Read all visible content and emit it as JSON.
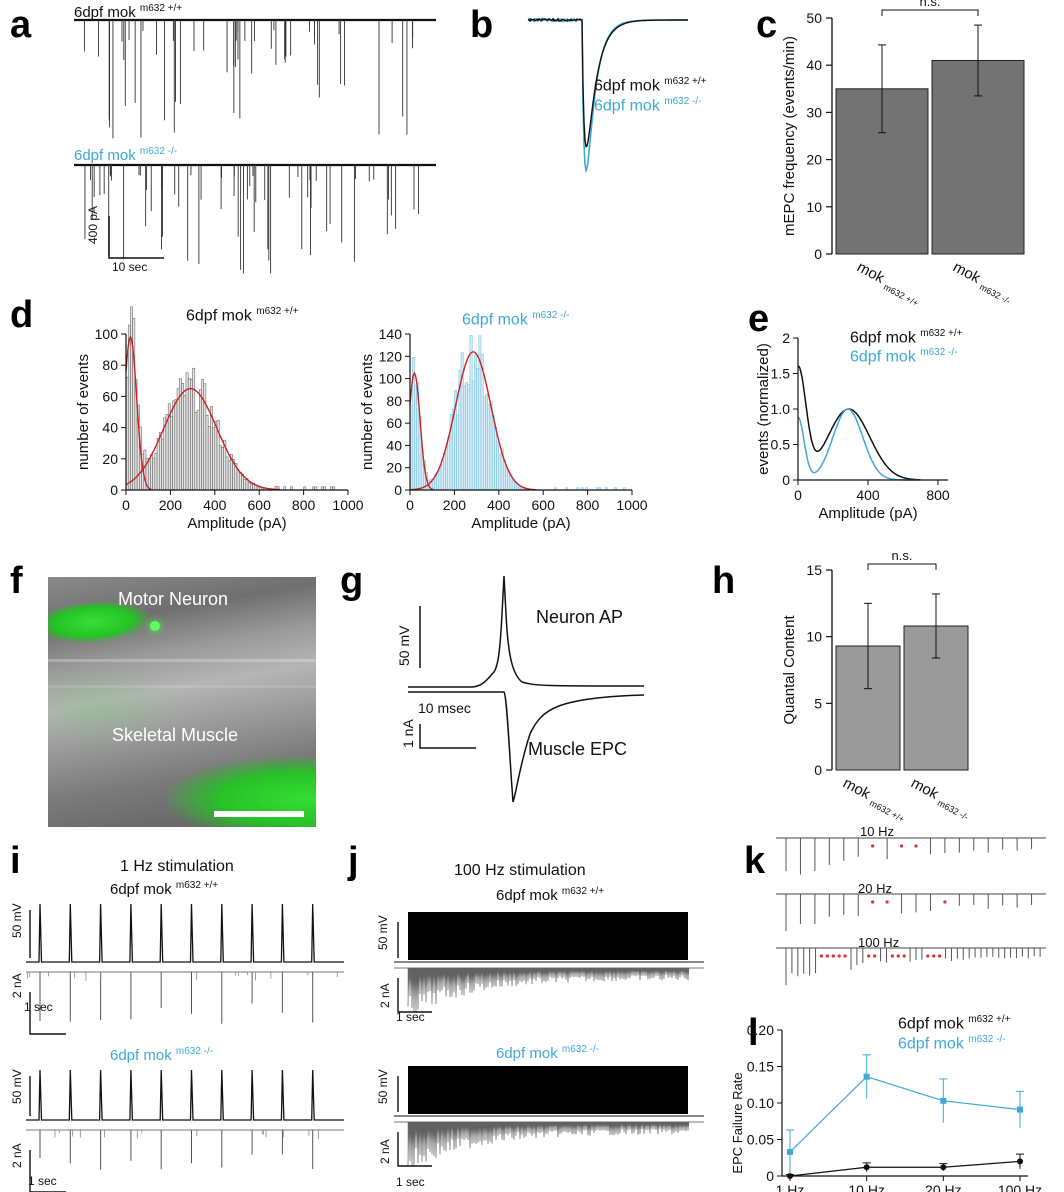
{
  "panel_letters": {
    "a": "a",
    "b": "b",
    "c": "c",
    "d": "d",
    "e": "e",
    "f": "f",
    "g": "g",
    "h": "h",
    "i": "i",
    "j": "j",
    "k": "k",
    "l": "l"
  },
  "genotypes": {
    "wt_base": "6dpf mok",
    "wt_sup": "m632 +/+",
    "mut_base": "6dpf mok",
    "mut_sup": "m632 -/-"
  },
  "panel_a": {
    "scale_y": "400 pA",
    "scale_x": "10 sec"
  },
  "panel_c": {
    "significance": "n.s.",
    "chart_data": {
      "type": "bar",
      "categories": [
        "mok m632 +/+",
        "mok m632 -/-"
      ],
      "category_base": [
        "mok",
        "mok"
      ],
      "category_sup": [
        "m632 +/+",
        "m632 -/-"
      ],
      "values": [
        35,
        41
      ],
      "error": [
        9.3,
        7.5
      ],
      "ylabel": "mEPC frequency (events/min)",
      "ylim": [
        0,
        50
      ],
      "yticks": [
        0,
        10,
        20,
        30,
        40,
        50
      ],
      "bar_color": "#737373"
    }
  },
  "panel_d": {
    "left": {
      "chart_data": {
        "type": "bar",
        "xlabel": "Amplitude (pA)",
        "ylabel": "number of events",
        "xlim": [
          0,
          1000
        ],
        "ylim": [
          0,
          100
        ],
        "xticks": [
          0,
          200,
          400,
          600,
          800,
          1000
        ],
        "yticks": [
          0,
          20,
          40,
          60,
          80,
          100
        ],
        "fit1": {
          "mu": 20,
          "sigma": 28,
          "amp": 98
        },
        "fit2": {
          "mu": 290,
          "sigma": 120,
          "amp": 65
        }
      }
    },
    "right": {
      "chart_data": {
        "type": "bar",
        "xlabel": "Amplitude (pA)",
        "ylabel": "number of events",
        "xlim": [
          0,
          1000
        ],
        "ylim": [
          0,
          140
        ],
        "xticks": [
          0,
          200,
          400,
          600,
          800,
          1000
        ],
        "yticks": [
          0,
          20,
          40,
          60,
          80,
          100,
          120,
          140
        ],
        "fit1": {
          "mu": 20,
          "sigma": 25,
          "amp": 105
        },
        "fit2": {
          "mu": 285,
          "sigma": 80,
          "amp": 124
        }
      }
    }
  },
  "panel_e": {
    "chart_data": {
      "type": "line",
      "xlabel": "Amplitude (pA)",
      "ylabel": "events (normalized)",
      "xlim": [
        0,
        800
      ],
      "ylim": [
        0,
        2
      ],
      "xticks": [
        0,
        400,
        800
      ],
      "yticks": [
        0,
        0.5,
        1.0,
        1.5,
        2
      ],
      "ytick_labels": [
        "0",
        "0.5",
        "1.0",
        "1.5",
        "2"
      ]
    }
  },
  "panel_f": {
    "label_top": "Motor Neuron",
    "label_bottom": "Skeletal Muscle"
  },
  "panel_g": {
    "scale_v": "50 mV",
    "scale_t": "10 msec",
    "scale_i": "1 nA",
    "label_ap": "Neuron AP",
    "label_epc": "Muscle EPC"
  },
  "panel_h": {
    "significance": "n.s.",
    "chart_data": {
      "type": "bar",
      "categories": [
        "mok m632 +/+",
        "mok m632 -/-"
      ],
      "category_base": [
        "mok",
        "mok"
      ],
      "category_sup": [
        "m632 +/+",
        "m632 -/-"
      ],
      "values": [
        9.3,
        10.8
      ],
      "error": [
        3.2,
        2.4
      ],
      "ylabel": "Quantal Content",
      "ylim": [
        0,
        15
      ],
      "yticks": [
        0,
        5,
        10,
        15
      ],
      "bar_color": "#9a9a9a"
    }
  },
  "panel_i": {
    "title": "1 Hz stimulation",
    "scale_v": "50 mV",
    "scale_i": "2 nA",
    "scale_t": "1 sec"
  },
  "panel_j": {
    "title": "100 Hz stimulation",
    "scale_v": "50 mV",
    "scale_i": "2 nA",
    "scale_t": "1 sec"
  },
  "panel_k": {
    "rows": [
      "10 Hz",
      "20 Hz",
      "100 Hz"
    ]
  },
  "panel_l": {
    "chart_data": {
      "type": "line",
      "categories": [
        "1 Hz",
        "10 Hz",
        "20 Hz",
        "100 Hz"
      ],
      "ylabel": "EPC Failure Rate",
      "ylim": [
        0,
        0.2
      ],
      "yticks": [
        0,
        0.05,
        0.1,
        0.15,
        0.2
      ],
      "ytick_labels": [
        "0",
        "0.05",
        "0.10",
        "0.15",
        "0.20"
      ],
      "series": [
        {
          "name": "6dpf mok m632 +/+",
          "values": [
            0.0,
            0.012,
            0.012,
            0.02
          ],
          "error": [
            0.002,
            0.006,
            0.005,
            0.01
          ],
          "color": "#111111"
        },
        {
          "name": "6dpf mok m632 -/-",
          "values": [
            0.033,
            0.136,
            0.103,
            0.091
          ],
          "error": [
            0.03,
            0.03,
            0.03,
            0.025
          ],
          "color": "#3ea9d6"
        }
      ]
    }
  },
  "colors": {
    "wt": "#111111",
    "mut": "#3ea9d6",
    "fit": "#cc2222",
    "k_marker": "#e03030"
  }
}
